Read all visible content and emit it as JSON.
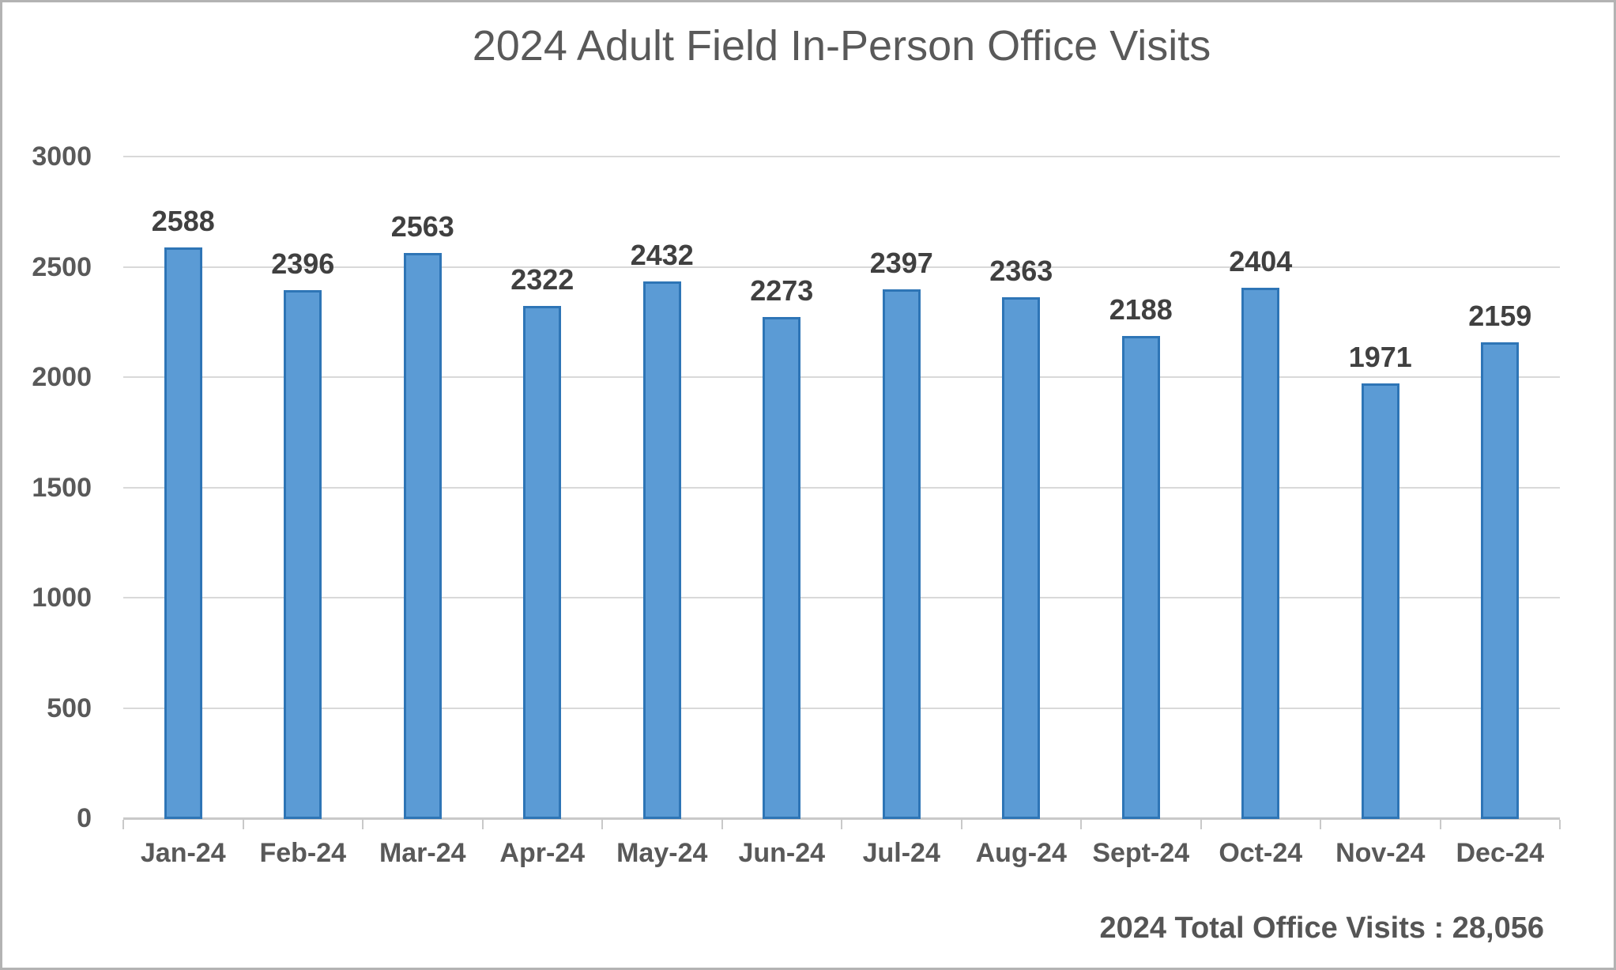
{
  "chart_data": {
    "type": "bar",
    "title": "2024 Adult Field In-Person Office Visits",
    "categories": [
      "Jan-24",
      "Feb-24",
      "Mar-24",
      "Apr-24",
      "May-24",
      "Jun-24",
      "Jul-24",
      "Aug-24",
      "Sept-24",
      "Oct-24",
      "Nov-24",
      "Dec-24"
    ],
    "values": [
      2588,
      2396,
      2563,
      2322,
      2432,
      2273,
      2397,
      2363,
      2188,
      2404,
      1971,
      2159
    ],
    "data_labels_shown": true,
    "xlabel": "",
    "ylabel": "",
    "ylim": [
      0,
      3000
    ],
    "yticks": [
      0,
      500,
      1000,
      1500,
      2000,
      2500,
      3000
    ],
    "grid": true,
    "legend": false,
    "annotation": "2024 Total Office Visits : 28,056",
    "colors": {
      "bar_fill": "#5b9bd5",
      "bar_border": "#2e75b6",
      "gridline": "#d9d9d9",
      "axis_line": "#c9c9c9",
      "title_text": "#595959",
      "axis_text": "#595959",
      "data_label_text": "#404040",
      "annotation_text": "#555555",
      "frame_border": "#b3b3b3",
      "background": "#ffffff"
    }
  }
}
